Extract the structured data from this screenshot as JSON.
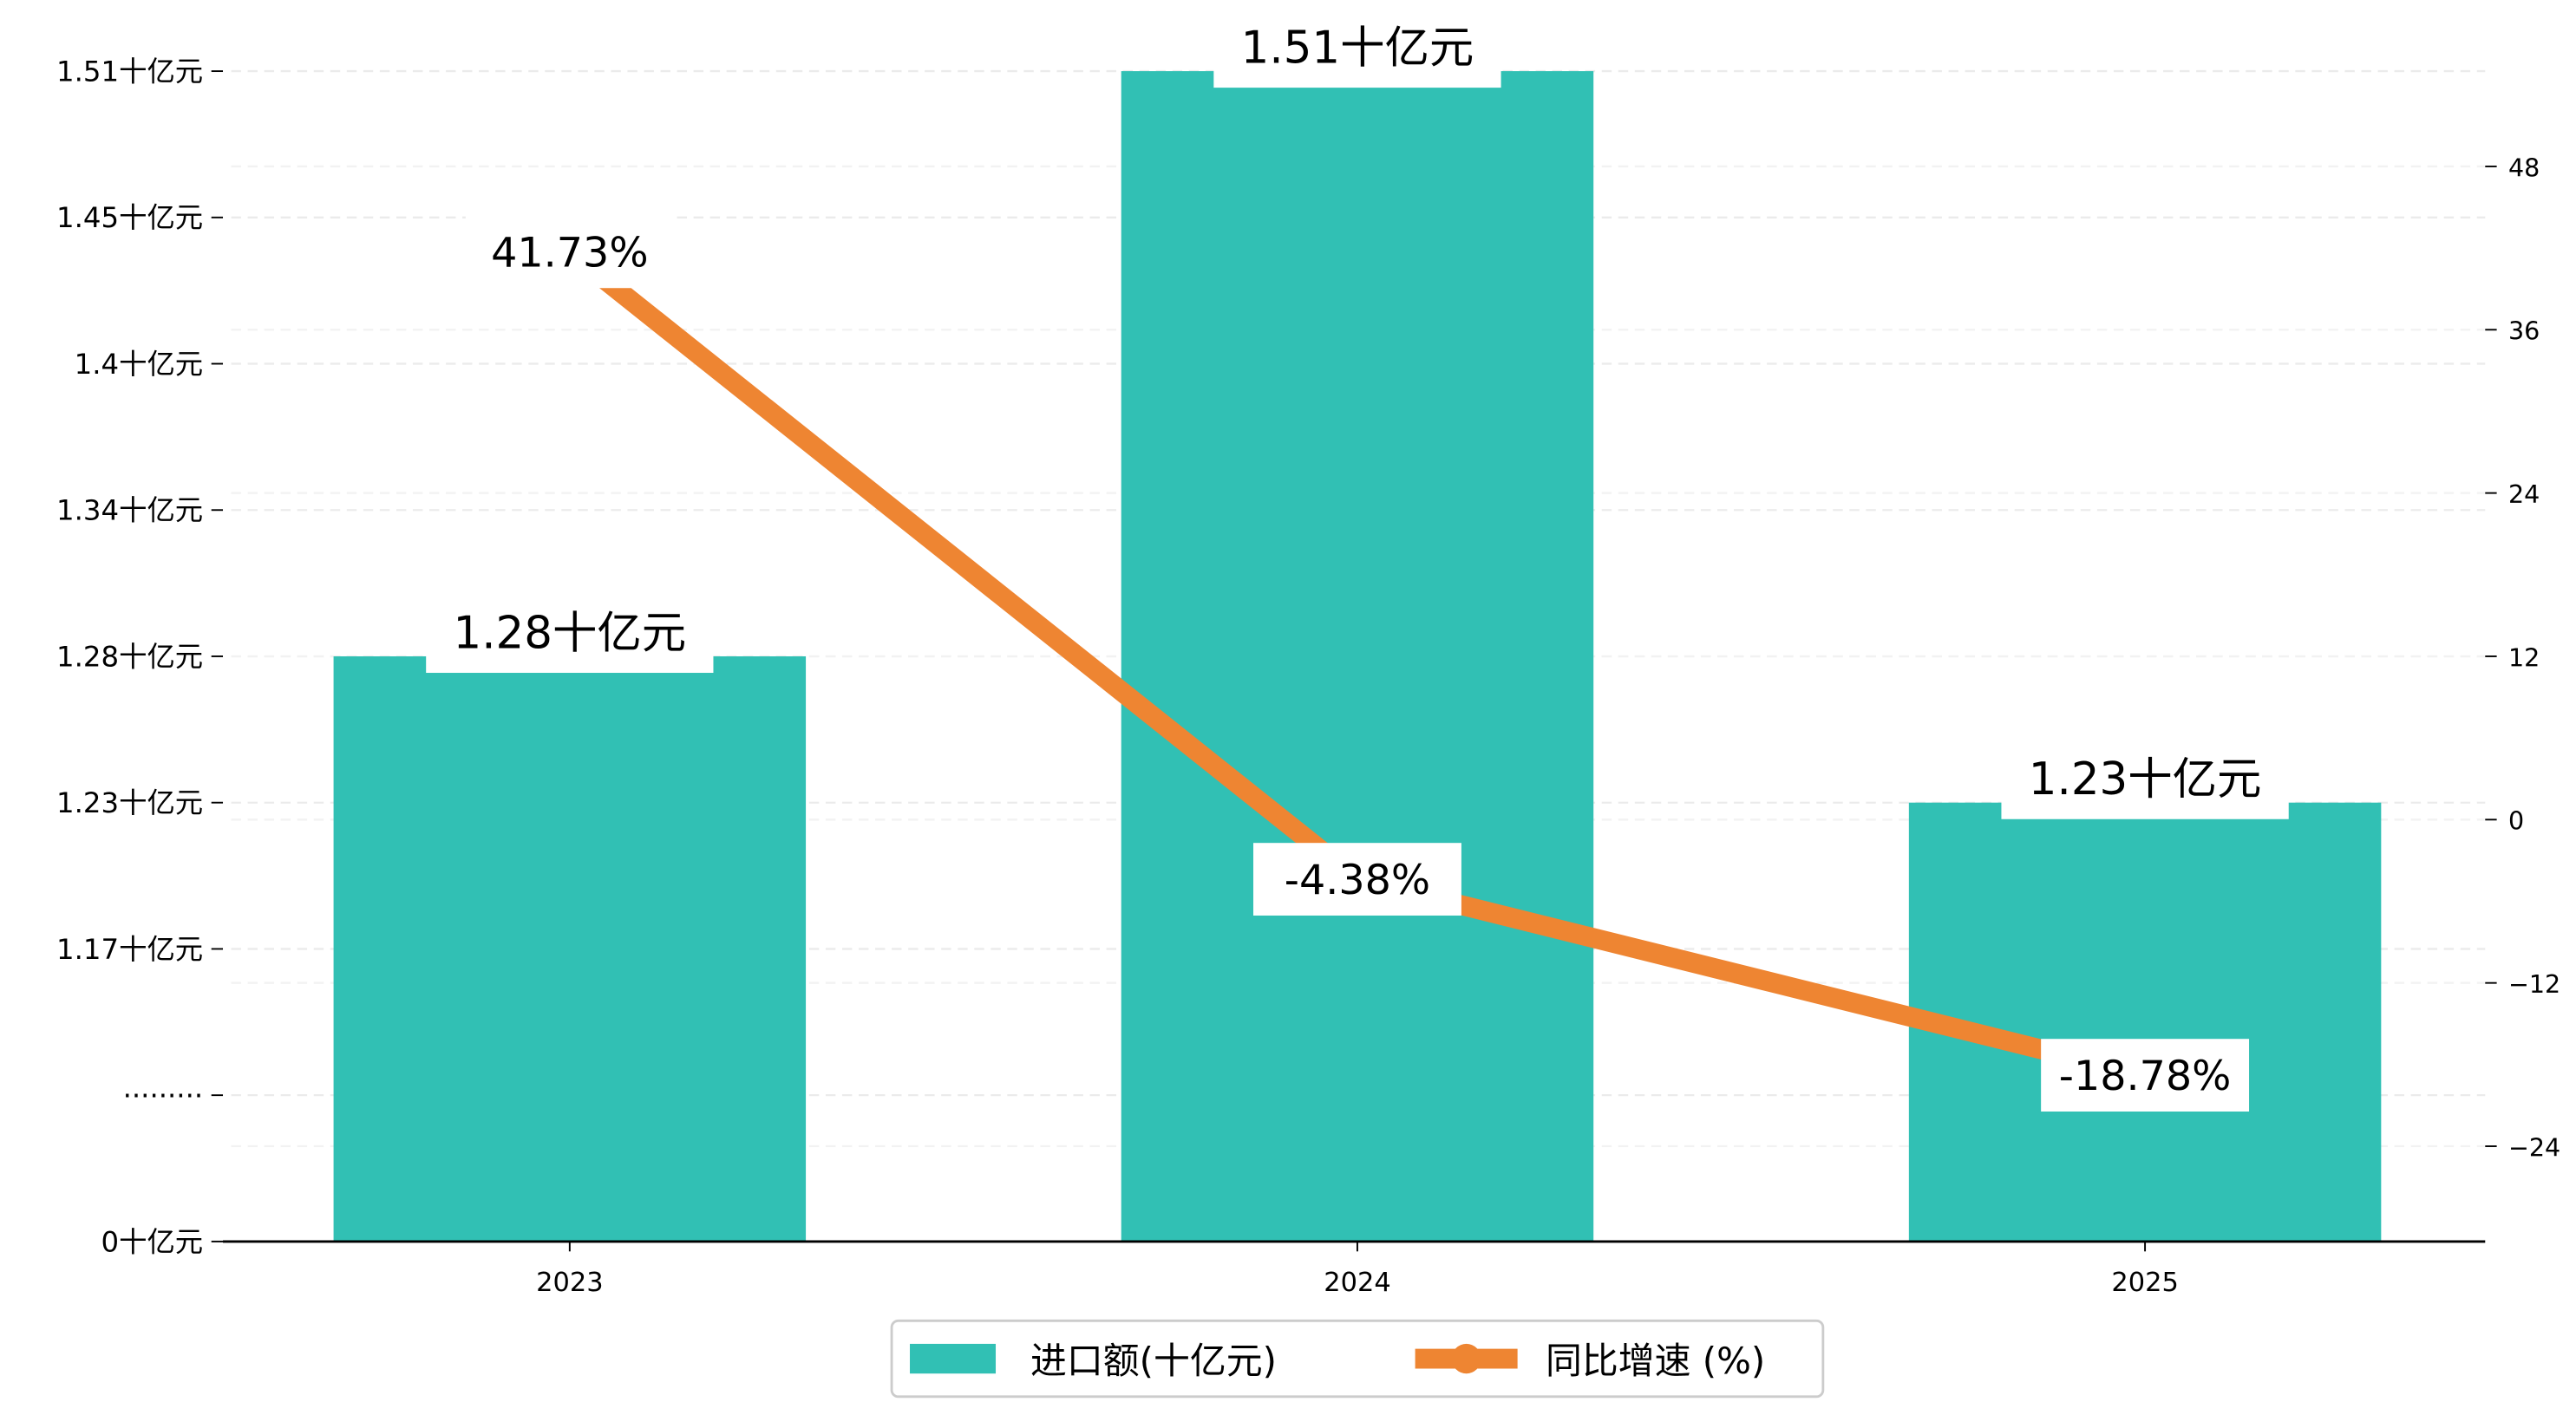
{
  "chart_data": {
    "type": "bar+line",
    "categories": [
      "2023",
      "2024",
      "2025"
    ],
    "series": [
      {
        "name": "进口额(十亿元)",
        "type": "bar",
        "axis": "left",
        "color": "#31C0B4",
        "values": [
          1.28,
          1.51,
          1.23
        ],
        "labels": [
          "1.28十亿元",
          "1.51十亿元",
          "1.23十亿元"
        ]
      },
      {
        "name": "同比增速 (%)",
        "type": "line",
        "axis": "right",
        "color": "#EE8532",
        "values": [
          41.73,
          -4.38,
          -18.78
        ],
        "labels": [
          "41.73%",
          "-4.38%",
          "-18.78%"
        ]
      }
    ],
    "left_axis": {
      "tick_labels": [
        "0十亿元",
        "·········",
        "1.17十亿元",
        "1.23十亿元",
        "1.28十亿元",
        "1.34十亿元",
        "1.4十亿元",
        "1.45十亿元",
        "1.51十亿元"
      ],
      "tick_values": [
        0,
        null,
        1.17,
        1.23,
        1.28,
        1.34,
        1.4,
        1.45,
        1.51
      ],
      "broken": true
    },
    "right_axis": {
      "ticks": [
        -24,
        -12,
        0,
        12,
        24,
        36,
        48
      ],
      "tick_labels": [
        "−24",
        "−12",
        "0",
        "12",
        "24",
        "36",
        "48"
      ],
      "ylim": [
        -31,
        55
      ]
    },
    "grid": true,
    "legend": {
      "position": "bottom-center",
      "entries": [
        "进口额(十亿元)",
        "同比增速 (%)"
      ]
    }
  }
}
